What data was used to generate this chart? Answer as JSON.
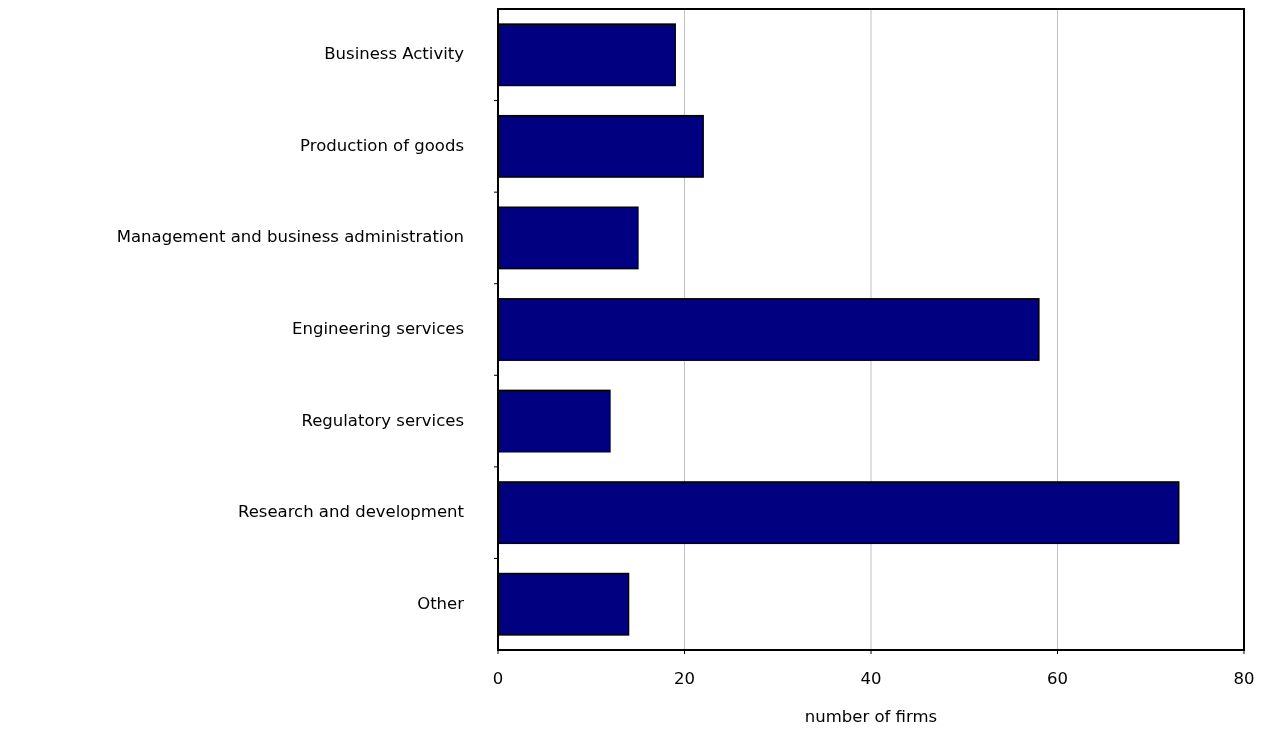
{
  "chart_data": {
    "type": "bar",
    "orientation": "horizontal",
    "xlabel": "number of firms",
    "categories": [
      "Business Activity",
      "Production of goods",
      "Management and business administration",
      "Engineering services",
      "Regulatory services",
      "Research and development",
      "Other"
    ],
    "values": [
      19,
      22,
      15,
      58,
      12,
      73,
      14
    ],
    "color": "#000080",
    "xlim": [
      0,
      80
    ],
    "xticks": [
      0,
      20,
      40,
      60,
      80
    ],
    "grid": "x"
  }
}
